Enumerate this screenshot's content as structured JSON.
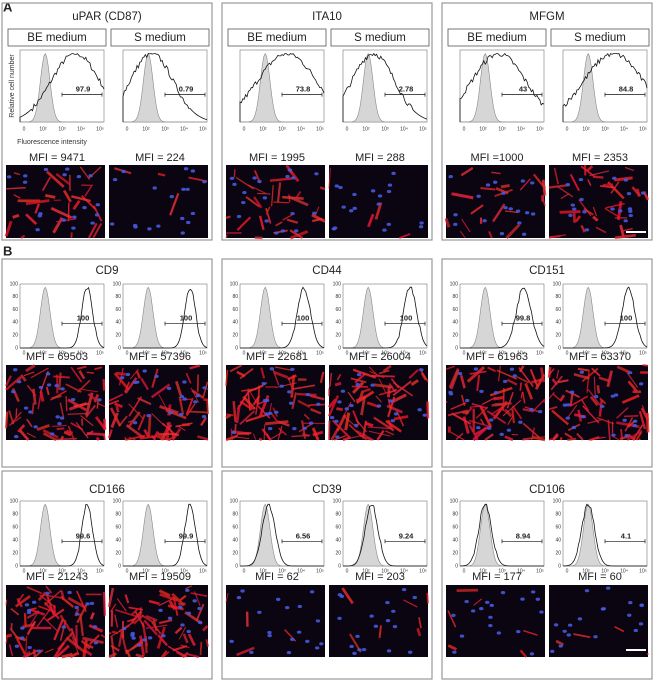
{
  "panels": [
    {
      "label": "A",
      "axis_y_label": "Relative cell number",
      "axis_x_label": "Fluorescence intensity",
      "x_ticks": [
        "0",
        "10²",
        "10³",
        "10⁴",
        "10⁵"
      ],
      "groups": [
        {
          "title": "uPAR (CD87)",
          "conditions": [
            {
              "medium": "BE medium",
              "percent": 97.9,
              "mfi": "MFI = 9471"
            },
            {
              "medium": "S medium",
              "percent": 0.79,
              "mfi": "MFI = 224"
            }
          ]
        },
        {
          "title": "ITA10",
          "conditions": [
            {
              "medium": "BE medium",
              "percent": 73.8,
              "mfi": "MFI = 1995"
            },
            {
              "medium": "S medium",
              "percent": 2.78,
              "mfi": "MFI = 288"
            }
          ]
        },
        {
          "title": "MFGM",
          "conditions": [
            {
              "medium": "BE medium",
              "percent": 43,
              "mfi": "MFI =1000"
            },
            {
              "medium": "S medium",
              "percent": 84.8,
              "mfi": "MFI = 2353"
            }
          ]
        }
      ]
    },
    {
      "label": "B",
      "x_ticks": [
        "0",
        "10²",
        "10³",
        "10⁴",
        "10⁵"
      ],
      "y_ticks": [
        "0",
        "20",
        "40",
        "60",
        "80",
        "100"
      ],
      "groups": [
        {
          "title": "CD9",
          "conditions": [
            {
              "percent": 100,
              "mfi": "MFI = 69503"
            },
            {
              "percent": 100,
              "mfi": "MFI = 57396"
            }
          ]
        },
        {
          "title": "CD44",
          "conditions": [
            {
              "percent": 100,
              "mfi": "MFI = 22681"
            },
            {
              "percent": 100,
              "mfi": "MFI = 26004"
            }
          ]
        },
        {
          "title": "CD151",
          "conditions": [
            {
              "percent": 99.8,
              "mfi": "MFI = 61963"
            },
            {
              "percent": 100,
              "mfi": "MFI = 63370"
            }
          ]
        },
        {
          "title": "CD166",
          "conditions": [
            {
              "percent": 99.6,
              "mfi": "MFI = 21243"
            },
            {
              "percent": 99.9,
              "mfi": "MFI = 19509"
            }
          ]
        },
        {
          "title": "CD39",
          "conditions": [
            {
              "percent": 6.56,
              "mfi": "MFI = 62"
            },
            {
              "percent": 9.24,
              "mfi": "MFI = 203"
            }
          ]
        },
        {
          "title": "CD106",
          "conditions": [
            {
              "percent": 8.94,
              "mfi": "MFI = 177"
            },
            {
              "percent": 4.1,
              "mfi": "MFI = 60"
            }
          ]
        }
      ]
    }
  ]
}
